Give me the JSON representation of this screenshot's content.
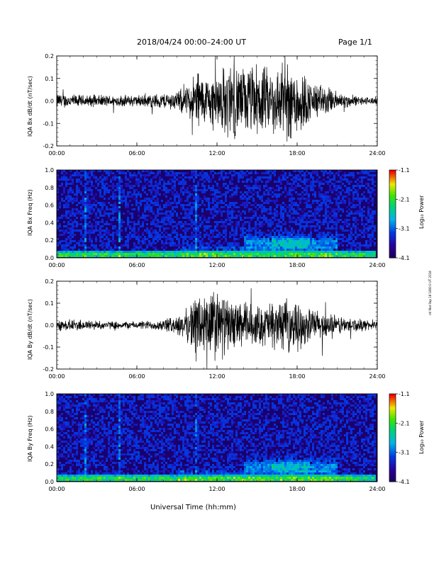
{
  "header": {
    "title": "2018/04/24  00:00–24:00 UT",
    "page": "Page 1/1"
  },
  "side_note": "ntl 9bd 9ap 18 1800:0 UT 2018",
  "colorbar": {
    "label": "Log₁₀ Power",
    "ticks": [
      "-1.1",
      "-2.1",
      "-3.1",
      "-4.1"
    ],
    "range": [
      -4.1,
      -1.1
    ]
  },
  "xlabel": "Universal Time (hh:mm)",
  "colors": {
    "trace": "#000000",
    "background_spec": "#1a006e"
  },
  "chart_data": [
    {
      "type": "line",
      "ylabel": "IQA Bx dB/dt (nT/sec)",
      "xlim": [
        0,
        24
      ],
      "ylim": [
        -0.2,
        0.2
      ],
      "xticks": [
        "00:00",
        "06:00",
        "12:00",
        "18:00",
        "24:00"
      ],
      "yticks": [
        "-0.2",
        "-0.1",
        "0.0",
        "0.1",
        "0.2"
      ],
      "series": [
        {
          "envelope": {
            "x": [
              0,
              2,
              4,
              6,
              8,
              9,
              10,
              10.5,
              11,
              12,
              13,
              14,
              15,
              16,
              17,
              18,
              19,
              20,
              21,
              22,
              23,
              24
            ],
            "amp": [
              0.04,
              0.03,
              0.03,
              0.03,
              0.04,
              0.05,
              0.09,
              0.18,
              0.12,
              0.15,
              0.2,
              0.17,
              0.19,
              0.16,
              0.2,
              0.2,
              0.1,
              0.08,
              0.05,
              0.03,
              0.02,
              0.02
            ]
          }
        }
      ]
    },
    {
      "type": "heatmap",
      "ylabel": "IQA Bx Freq (Hz)",
      "xlim": [
        0,
        24
      ],
      "ylim": [
        0,
        1.0
      ],
      "xticks": [
        "00:00",
        "06:00",
        "12:00",
        "18:00",
        "24:00"
      ],
      "yticks": [
        "0.0",
        "0.2",
        "0.4",
        "0.6",
        "0.8",
        "1.0"
      ]
    },
    {
      "type": "line",
      "ylabel": "IQA By dB/dt (nT/sec)",
      "xlim": [
        0,
        24
      ],
      "ylim": [
        -0.2,
        0.2
      ],
      "xticks": [
        "00:00",
        "06:00",
        "12:00",
        "18:00",
        "24:00"
      ],
      "yticks": [
        "-0.2",
        "-0.1",
        "0.0",
        "0.1",
        "0.2"
      ],
      "series": [
        {
          "envelope": {
            "x": [
              0,
              2,
              4,
              6,
              8,
              9,
              10,
              10.5,
              11,
              12,
              13,
              14,
              15,
              16,
              17,
              18,
              19,
              20,
              21,
              22,
              23,
              24
            ],
            "amp": [
              0.03,
              0.03,
              0.02,
              0.02,
              0.03,
              0.05,
              0.1,
              0.2,
              0.18,
              0.2,
              0.12,
              0.13,
              0.1,
              0.12,
              0.13,
              0.12,
              0.09,
              0.07,
              0.05,
              0.04,
              0.03,
              0.02
            ]
          }
        }
      ]
    },
    {
      "type": "heatmap",
      "ylabel": "IQA By Freq (Hz)",
      "xlim": [
        0,
        24
      ],
      "ylim": [
        0,
        1.0
      ],
      "xticks": [
        "00:00",
        "06:00",
        "12:00",
        "18:00",
        "24:00"
      ],
      "yticks": [
        "0.0",
        "0.2",
        "0.4",
        "0.6",
        "0.8",
        "1.0"
      ]
    }
  ]
}
